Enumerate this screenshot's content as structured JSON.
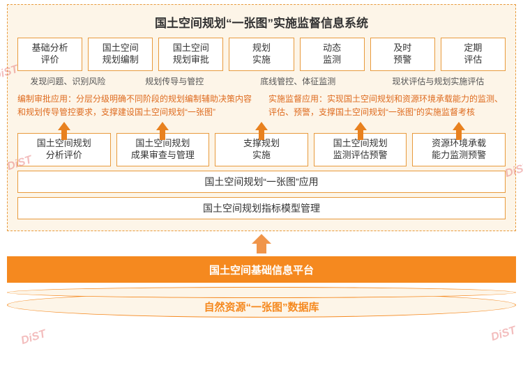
{
  "title": "国土空间规划“一张图”实施监督信息系统",
  "top": [
    "基础分析\n评价",
    "国土空间\n规划编制",
    "国土空间\n规划审批",
    "规划\n实施",
    "动态\n监测",
    "及时\n预警",
    "定期\n评估"
  ],
  "sub": [
    "发现问题、识别风险",
    "规划传导与管控",
    "底线管控、体征监测",
    "现状评估与规划实施评估"
  ],
  "descL": "编制审批应用：分层分级明确不同阶段的规划编制辅助决策内容和规划传导管控要求，支撑建设国土空间规划“一张图”",
  "descR": "实施监督应用：实现国土空间规划和资源环境承载能力的监测、评估、预警，支撑国土空间规划“一张图”的实施监督考核",
  "mid": [
    "国土空间规划\n分析评价",
    "国土空间规划\n成果审查与管理",
    "支撑规划\n实施",
    "国土空间规划\n监测评估预警",
    "资源环境承载\n能力监测预警"
  ],
  "wide1": "国土空间规划“一张图”应用",
  "wide2": "国土空间规划指标模型管理",
  "platform": "国土空间基础信息平台",
  "db": "自然资源“一张图”数据库",
  "colors": {
    "border": "#e89a3c",
    "bg": "#fdf5e8",
    "accent": "#f5891f",
    "text": "#de6b1f"
  }
}
